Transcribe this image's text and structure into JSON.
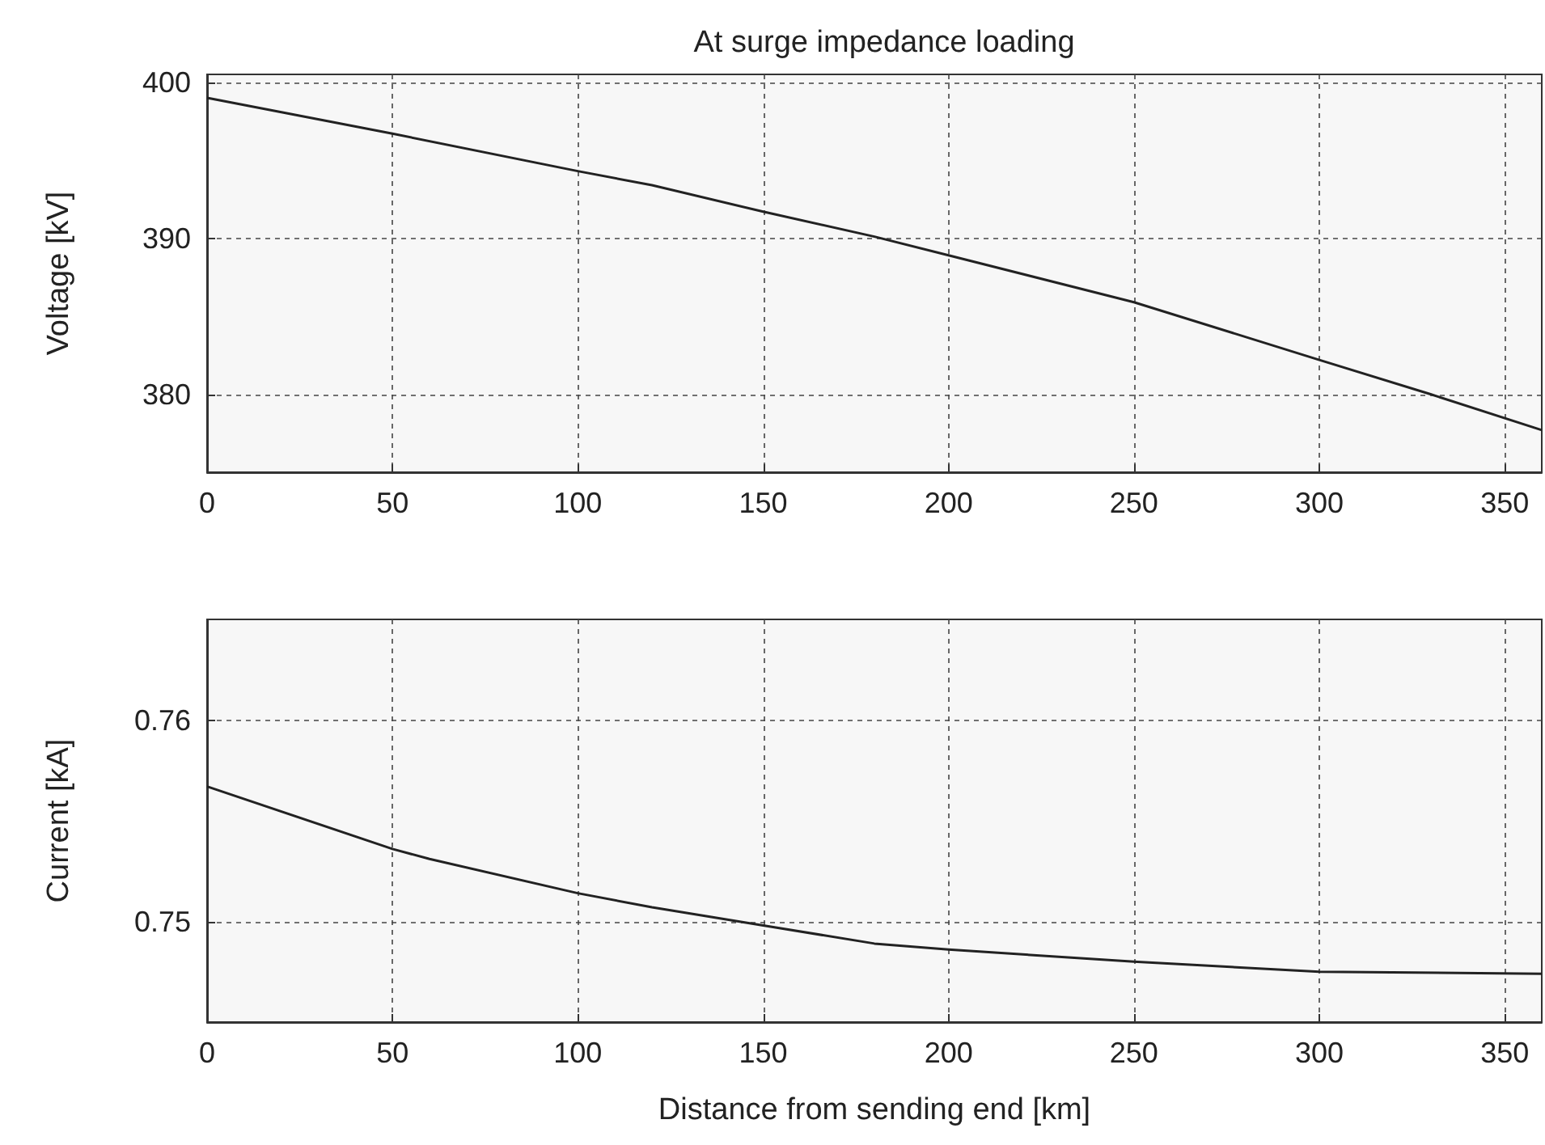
{
  "chart_data": [
    {
      "type": "line",
      "title": "At surge impedance loading",
      "ylabel": "Voltage [kV]",
      "x": [
        0,
        50,
        100,
        120,
        150,
        180,
        200,
        250,
        300,
        330,
        360
      ],
      "series": [
        {
          "color": "#222222",
          "values": [
            399,
            396.7,
            394.3,
            393.4,
            391.7,
            390.1,
            388.9,
            385.9,
            382.2,
            380,
            377.7
          ]
        }
      ],
      "xlim": [
        0,
        360
      ],
      "xticks": [
        0,
        50,
        100,
        150,
        200,
        250,
        300,
        350
      ],
      "ylim": [
        375,
        400.5
      ],
      "yticks": [
        380,
        390,
        400
      ],
      "grid": true
    },
    {
      "type": "line",
      "xlabel": "Distance from sending end [km]",
      "ylabel": "Current [kA]",
      "x": [
        0,
        50,
        60,
        100,
        120,
        150,
        180,
        200,
        250,
        300,
        360
      ],
      "series": [
        {
          "color": "#222222",
          "values": [
            0.7567,
            0.7536,
            0.7531,
            0.7514,
            0.7507,
            0.7498,
            0.7489,
            0.7486,
            0.748,
            0.7475,
            0.7474
          ]
        }
      ],
      "xlim": [
        0,
        360
      ],
      "xticks": [
        0,
        50,
        100,
        150,
        200,
        250,
        300,
        350
      ],
      "ylim": [
        0.745,
        0.765
      ],
      "yticks": [
        0.75,
        0.76
      ],
      "grid": true
    }
  ]
}
